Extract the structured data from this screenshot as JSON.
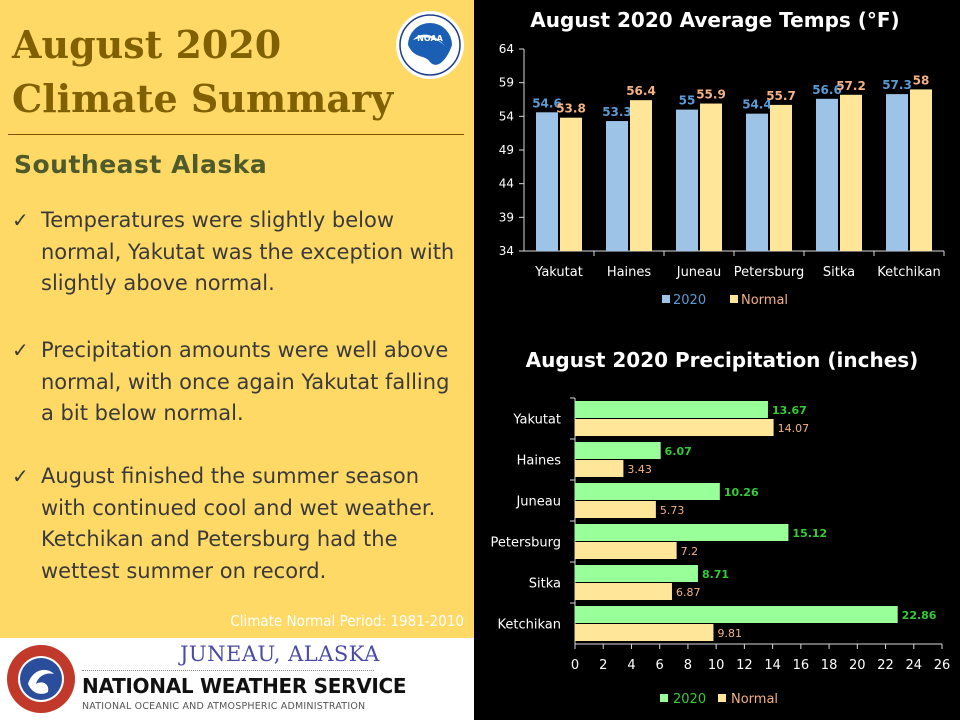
{
  "title_line1": "August 2020",
  "title_line2": "Climate Summary",
  "subtitle": "Southeast Alaska",
  "bullets": [
    "Temperatures were slightly below normal, Yakutat was the exception with slightly above normal.",
    "Precipitation amounts were well above normal, with once again Yakutat falling a bit below normal.",
    "August finished the summer season with continued cool and wet weather. Ketchikan and Petersburg had the wettest summer on record."
  ],
  "check_glyph": "✓",
  "normal_period": "Climate Normal Period: 1981-2010",
  "footer": {
    "city": "JUNEAU, ALASKA",
    "agency": "NATIONAL WEATHER SERVICE",
    "parent": "NATIONAL OCEANIC AND ATMOSPHERIC ADMINISTRATION",
    "noaa_logo_text": "NOAA"
  },
  "colors": {
    "panel_bg": "#ffd966",
    "title": "#806000",
    "series_2020_temp": "#9dc3e6",
    "series_normal": "#ffe699",
    "series_2020_precip": "#99ff99",
    "label_2020_temp": "#5b9bd5",
    "label_normal": "#f4b183",
    "label_2020_precip": "#33cc33"
  },
  "chart_data": [
    {
      "type": "bar",
      "title": "August 2020 Average Temps (°F)",
      "categories": [
        "Yakutat",
        "Haines",
        "Juneau",
        "Petersburg",
        "Sitka",
        "Ketchikan"
      ],
      "series": [
        {
          "name": "2020",
          "values": [
            54.6,
            53.3,
            55,
            54.4,
            56.6,
            57.3
          ]
        },
        {
          "name": "Normal",
          "values": [
            53.8,
            56.4,
            55.9,
            55.7,
            57.2,
            58
          ]
        }
      ],
      "ylim": [
        34,
        64
      ],
      "yticks": [
        34,
        39,
        44,
        49,
        54,
        59,
        64
      ],
      "legend": "bottom",
      "grid": false
    },
    {
      "type": "bar",
      "orientation": "horizontal",
      "title": "August 2020 Precipitation (inches)",
      "categories": [
        "Yakutat",
        "Haines",
        "Juneau",
        "Petersburg",
        "Sitka",
        "Ketchikan"
      ],
      "series": [
        {
          "name": "2020",
          "values": [
            13.67,
            6.07,
            10.26,
            15.12,
            8.71,
            22.86
          ]
        },
        {
          "name": "Normal",
          "values": [
            14.07,
            3.43,
            5.73,
            7.2,
            6.87,
            9.81
          ]
        }
      ],
      "xlim": [
        0,
        26
      ],
      "xticks": [
        0,
        2,
        4,
        6,
        8,
        10,
        12,
        14,
        16,
        18,
        20,
        22,
        24,
        26
      ],
      "legend": "bottom",
      "grid": false
    }
  ]
}
